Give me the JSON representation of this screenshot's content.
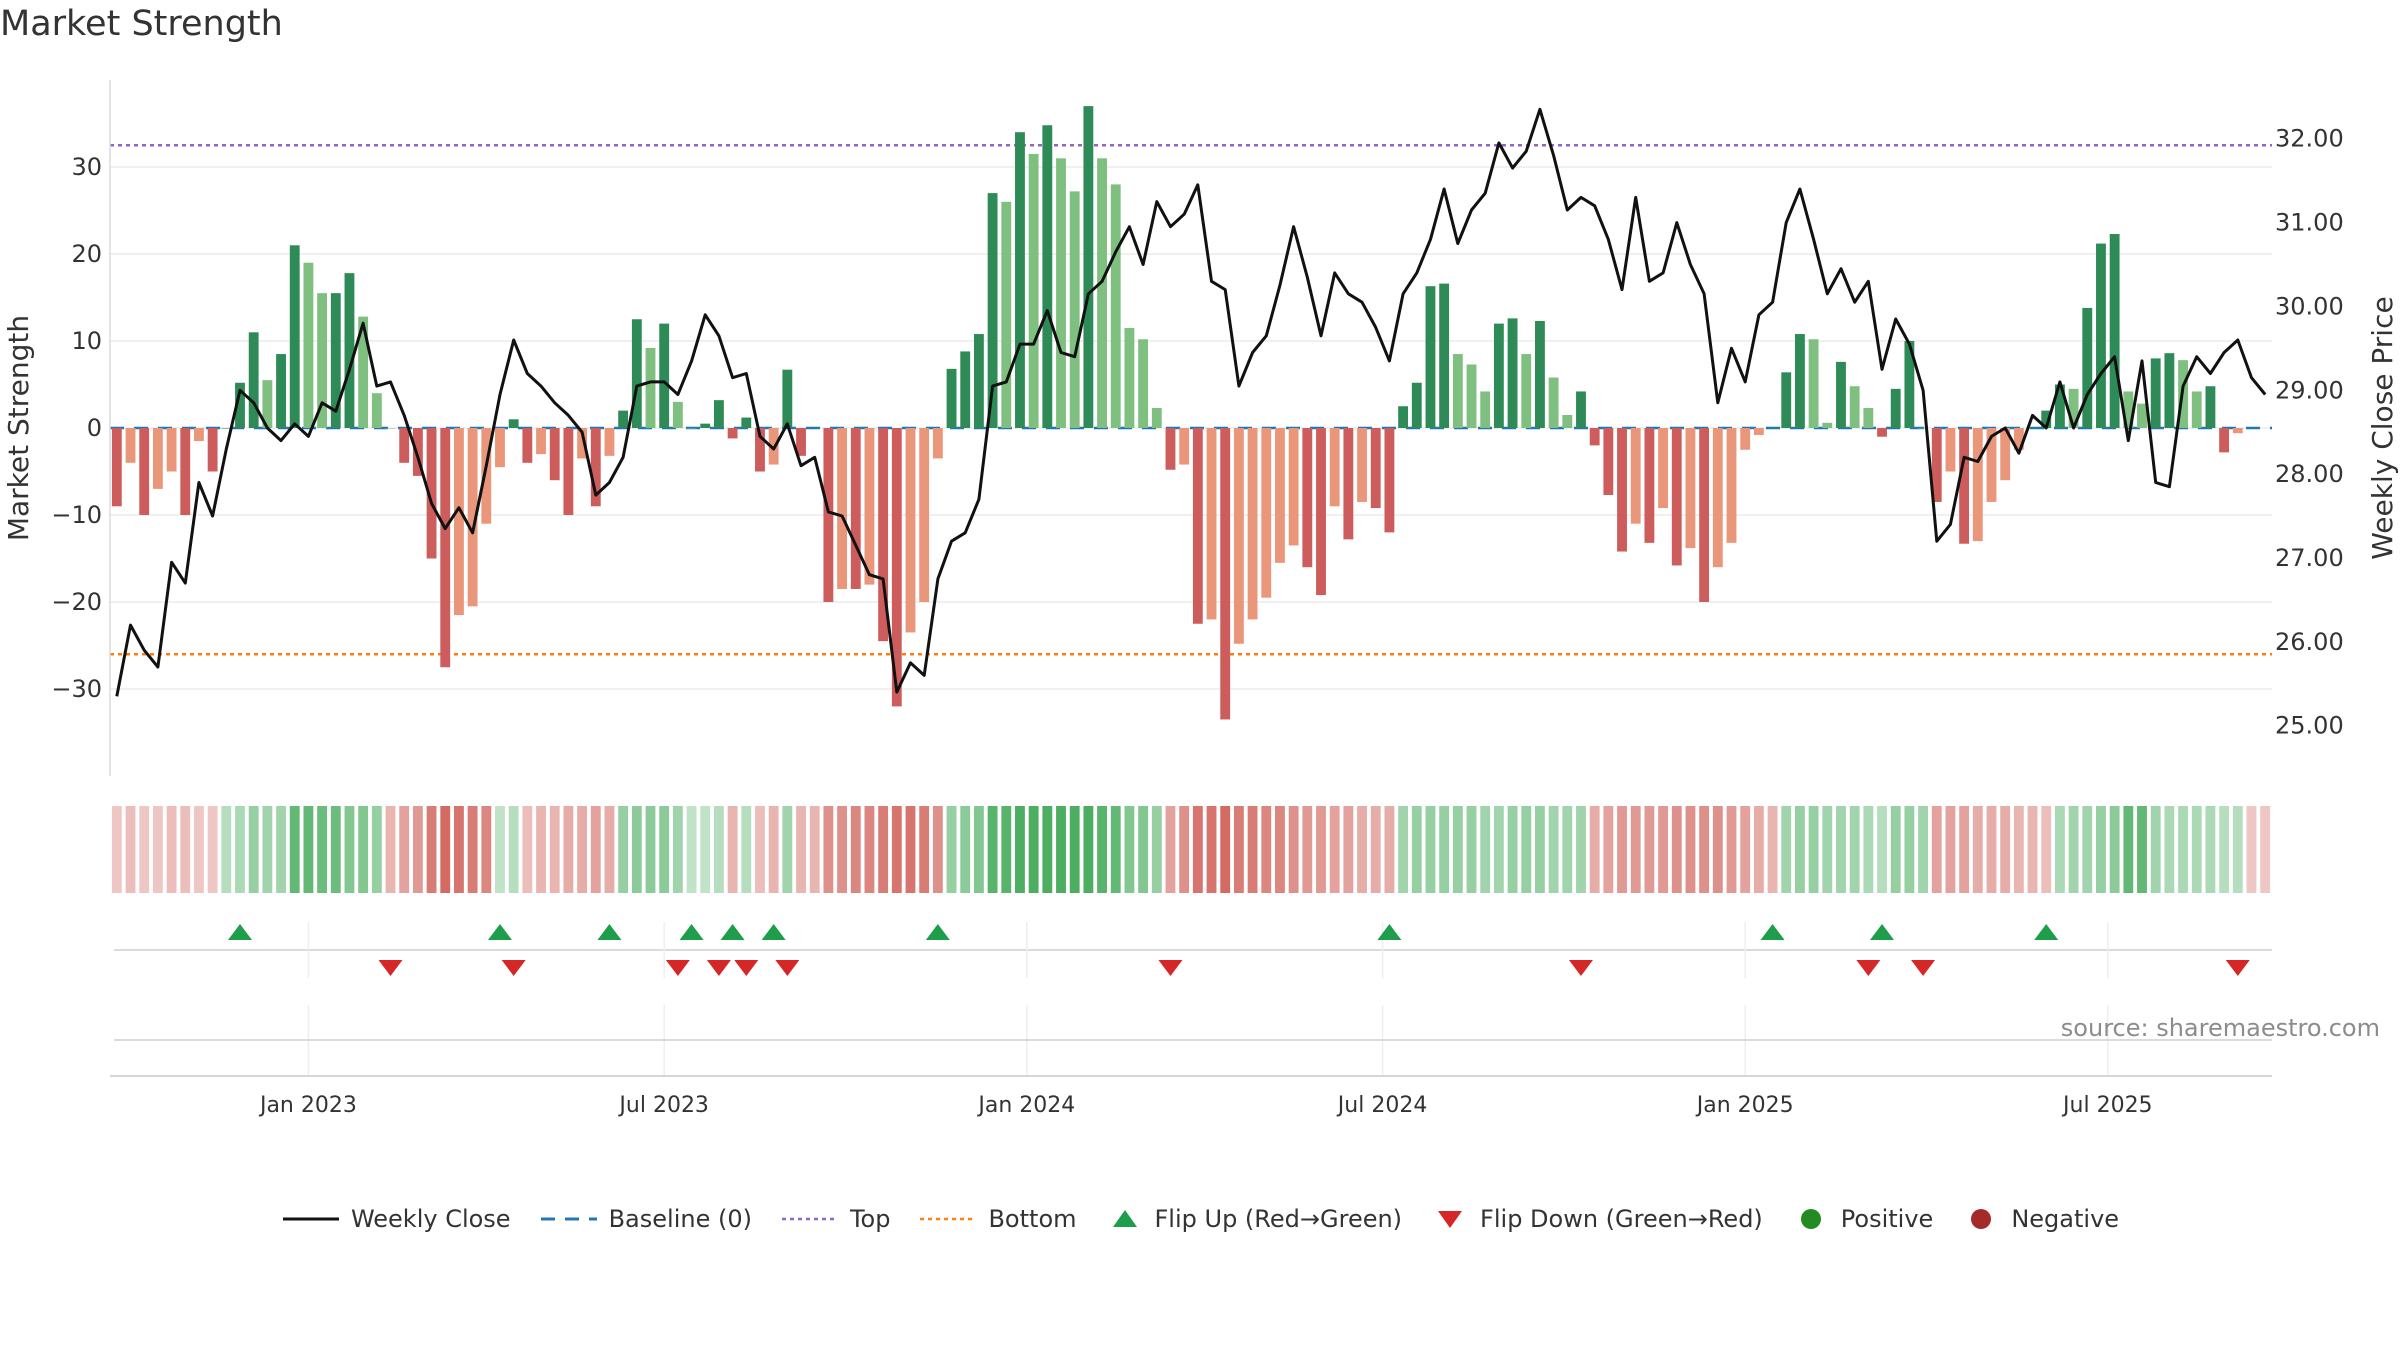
{
  "title": "Market Strength",
  "source": "source: sharemaestro.com",
  "colors": {
    "pos_dark": "#2e8b57",
    "pos_light": "#7fbf7f",
    "neg_dark": "#cd5c5c",
    "neg_light": "#e9967a",
    "close_line": "#111111",
    "baseline": "#1f77b4",
    "top": "#9467bd",
    "bottom": "#ff7f0e",
    "flip_up": "#1e9e4a",
    "flip_down": "#d62728",
    "positive_dot": "#228b22",
    "negative_dot": "#a52a2a"
  },
  "chart_data": {
    "type": "bar",
    "title": "Market Strength",
    "ylabel_left": "Market Strength",
    "ylabel_right": "Weekly Close Price",
    "ylim_left": [
      -40,
      40
    ],
    "ylim_right": [
      24.4,
      32.7
    ],
    "yticks_left": [
      30,
      20,
      10,
      0,
      -10,
      -20,
      -30
    ],
    "ytick_labels_left": [
      "30",
      "20",
      "10",
      "0",
      "−10",
      "−20",
      "−30"
    ],
    "yticks_right": [
      32,
      31,
      30,
      29,
      28,
      27,
      26,
      25
    ],
    "ytick_labels_right": [
      "32.00",
      "31.00",
      "30.00",
      "29.00",
      "28.00",
      "27.00",
      "26.00",
      "25.00"
    ],
    "top_level": 32.5,
    "bottom_level": -26,
    "week_count": 158,
    "x_tick_labels": [
      "Jan 2023",
      "Jul 2023",
      "Jan 2024",
      "Jul 2024",
      "Jan 2025",
      "Jul 2025"
    ],
    "x_tick_weeks": [
      14.5,
      40.5,
      67,
      93,
      119.5,
      146
    ],
    "strength": [
      -9,
      -4,
      -10,
      -7,
      -5,
      -10,
      -1.5,
      -5,
      0,
      5.2,
      11,
      5.5,
      8.5,
      21,
      19,
      15.5,
      15.5,
      17.8,
      12.8,
      4,
      0,
      -4,
      -5.5,
      -15,
      -27.5,
      -21.5,
      -20.5,
      -11,
      -4.5,
      1,
      -4,
      -3,
      -6,
      -10,
      -3.5,
      -9,
      -3.2,
      2,
      12.5,
      9.2,
      12,
      3,
      0,
      0.5,
      3.2,
      -1.2,
      1.2,
      -5,
      -4.2,
      6.7,
      -3.2,
      0,
      -20,
      -18.5,
      -18.5,
      -18,
      -24.5,
      -32,
      -23.5,
      -20,
      -3.5,
      6.8,
      8.8,
      10.8,
      27,
      26,
      34,
      31.5,
      34.8,
      31,
      27.2,
      37,
      31,
      28,
      11.5,
      10.2,
      2.3,
      -4.8,
      -4.2,
      -22.5,
      -22,
      -33.5,
      -24.8,
      -22,
      -19.5,
      -15.5,
      -13.5,
      -16,
      -19.2,
      -9,
      -12.8,
      -8.5,
      -9.2,
      -12,
      2.5,
      5.2,
      16.3,
      16.6,
      8.5,
      7.3,
      4.2,
      12,
      12.6,
      8.5,
      12.3,
      5.8,
      1.5,
      4.2,
      -2,
      -7.7,
      -14.2,
      -11,
      -13.2,
      -9.2,
      -15.8,
      -13.8,
      -20,
      -16,
      -13.2,
      -2.5,
      -0.8,
      0,
      6.4,
      10.8,
      10.2,
      0.6,
      7.6,
      4.8,
      2.3,
      -1,
      4.5,
      10,
      0,
      -8.5,
      -5,
      -13.3,
      -13,
      -8.5,
      -6,
      -2.5,
      0,
      2,
      5,
      4.5,
      13.8,
      21.2,
      22.3,
      4.2,
      2.8,
      8,
      8.6,
      7.8,
      4.2,
      4.8,
      -2.8,
      -0.6
    ],
    "weekly_close": [
      25.35,
      26.2,
      25.9,
      25.7,
      26.95,
      26.7,
      27.9,
      27.5,
      28.3,
      29.0,
      28.85,
      28.55,
      28.4,
      28.6,
      28.45,
      28.85,
      28.75,
      29.25,
      29.8,
      29.05,
      29.1,
      28.7,
      28.2,
      27.65,
      27.35,
      27.6,
      27.3,
      28.1,
      28.95,
      29.6,
      29.2,
      29.05,
      28.85,
      28.7,
      28.5,
      27.75,
      27.9,
      28.2,
      29.05,
      29.1,
      29.1,
      28.95,
      29.35,
      29.9,
      29.65,
      29.15,
      29.2,
      28.45,
      28.3,
      28.6,
      28.1,
      28.2,
      27.55,
      27.5,
      27.15,
      26.8,
      26.75,
      25.4,
      25.75,
      25.6,
      26.75,
      27.2,
      27.3,
      27.7,
      29.05,
      29.1,
      29.55,
      29.55,
      29.95,
      29.45,
      29.4,
      30.15,
      30.3,
      30.65,
      30.95,
      30.5,
      31.25,
      30.95,
      31.1,
      31.45,
      30.3,
      30.2,
      29.05,
      29.45,
      29.65,
      30.25,
      30.95,
      30.35,
      29.65,
      30.4,
      30.15,
      30.05,
      29.75,
      29.35,
      30.15,
      30.4,
      30.8,
      31.4,
      30.75,
      31.15,
      31.35,
      31.95,
      31.65,
      31.85,
      32.35,
      31.8,
      31.15,
      31.3,
      31.2,
      30.8,
      30.2,
      31.3,
      30.3,
      30.4,
      31.0,
      30.5,
      30.15,
      28.85,
      29.5,
      29.1,
      29.9,
      30.05,
      31.0,
      31.4,
      30.8,
      30.15,
      30.45,
      30.05,
      30.3,
      29.25,
      29.85,
      29.55,
      29.0,
      27.2,
      27.4,
      28.2,
      28.15,
      28.45,
      28.55,
      28.25,
      28.7,
      28.55,
      29.1,
      28.55,
      28.95,
      29.2,
      29.4,
      28.4,
      29.35,
      27.9,
      27.85,
      29.05,
      29.4,
      29.2,
      29.45,
      29.6,
      29.15,
      28.95
    ],
    "regime_shading": [
      -0.3,
      -0.35,
      -0.3,
      -0.3,
      -0.35,
      -0.35,
      -0.3,
      -0.3,
      0.35,
      0.4,
      0.5,
      0.45,
      0.45,
      0.75,
      0.75,
      0.7,
      0.7,
      0.6,
      0.6,
      0.5,
      -0.4,
      -0.5,
      -0.55,
      -0.7,
      -0.8,
      -0.75,
      -0.7,
      -0.65,
      0.3,
      0.35,
      -0.35,
      -0.4,
      -0.4,
      -0.45,
      -0.45,
      -0.5,
      -0.45,
      0.5,
      0.55,
      0.55,
      0.55,
      0.45,
      0.3,
      0.3,
      0.35,
      -0.4,
      0.35,
      -0.35,
      -0.4,
      0.45,
      -0.4,
      -0.4,
      -0.6,
      -0.6,
      -0.65,
      -0.65,
      -0.7,
      -0.75,
      -0.75,
      -0.7,
      -0.6,
      0.5,
      0.55,
      0.6,
      0.8,
      0.8,
      0.85,
      0.85,
      0.85,
      0.85,
      0.85,
      0.85,
      0.8,
      0.75,
      0.6,
      0.6,
      0.5,
      -0.5,
      -0.6,
      -0.75,
      -0.75,
      -0.8,
      -0.7,
      -0.7,
      -0.65,
      -0.65,
      -0.6,
      -0.55,
      -0.55,
      -0.5,
      -0.5,
      -0.45,
      -0.45,
      -0.45,
      0.45,
      0.5,
      0.5,
      0.5,
      0.5,
      0.5,
      0.45,
      0.45,
      0.5,
      0.5,
      0.5,
      0.45,
      0.45,
      0.45,
      -0.45,
      -0.5,
      -0.55,
      -0.55,
      -0.55,
      -0.55,
      -0.6,
      -0.6,
      -0.6,
      -0.6,
      -0.55,
      -0.5,
      -0.45,
      -0.4,
      0.45,
      0.5,
      0.5,
      0.45,
      0.45,
      0.45,
      0.4,
      0.35,
      0.5,
      0.5,
      0.45,
      -0.5,
      -0.5,
      -0.5,
      -0.45,
      -0.45,
      -0.45,
      -0.4,
      -0.4,
      -0.35,
      0.4,
      0.45,
      0.45,
      0.5,
      0.55,
      0.75,
      0.75,
      0.45,
      0.4,
      0.4,
      0.4,
      0.4,
      0.35,
      0.35,
      -0.3,
      -0.3
    ],
    "flip_up_weeks": [
      9,
      28,
      36,
      42,
      45,
      48,
      60,
      93,
      121,
      129,
      141
    ],
    "flip_down_weeks": [
      20,
      29,
      41,
      44,
      46,
      49,
      77,
      107,
      128,
      132,
      155
    ],
    "legend": [
      "Weekly Close",
      "Baseline (0)",
      "Top",
      "Bottom",
      "Flip Up (Red→Green)",
      "Flip Down (Green→Red)",
      "Positive",
      "Negative"
    ]
  }
}
